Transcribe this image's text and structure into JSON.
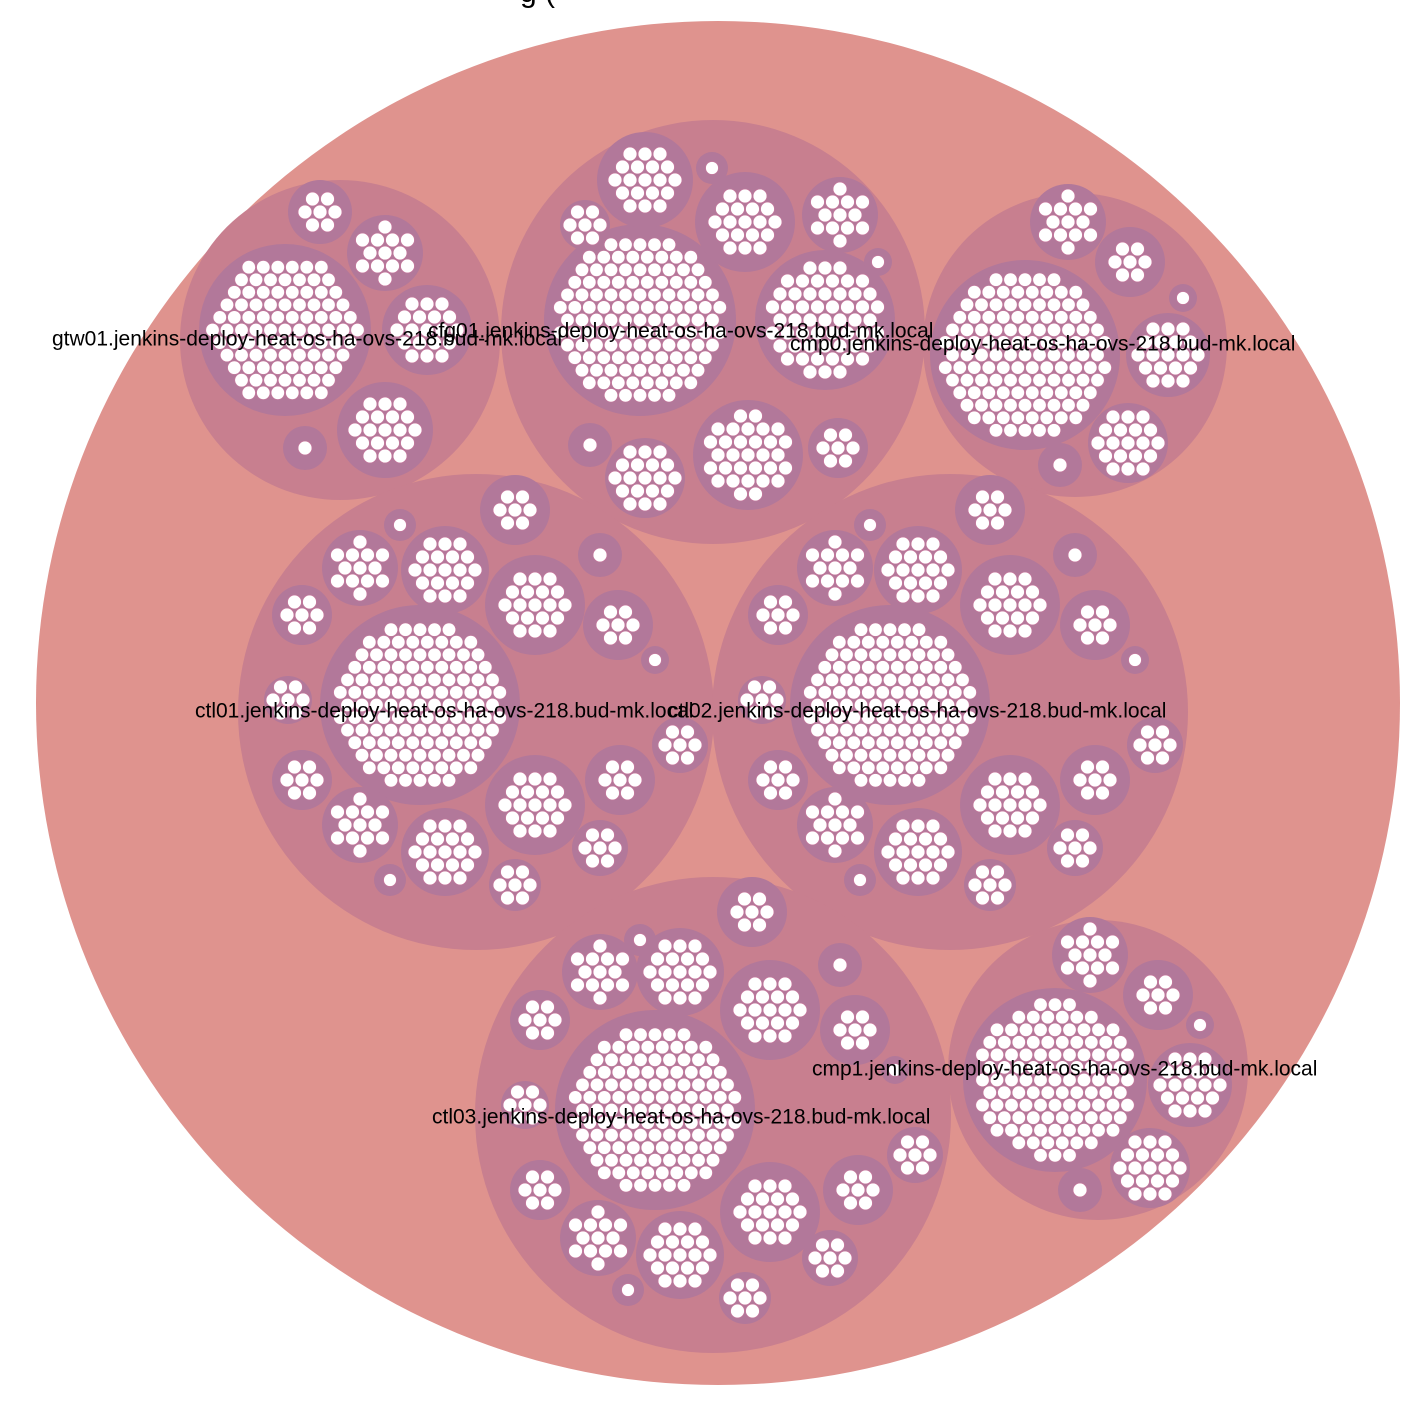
{
  "header": {
    "title_fragment": "g ("
  },
  "colors": {
    "root_fill": "#df938e",
    "host_fill": "#c87f8f",
    "group_fill": "#b2789a",
    "leaf_fill": "#ffffff",
    "leaf_stroke": "#c7779c",
    "label_color": "#000000"
  },
  "hosts": [
    {
      "id": "gtw01",
      "label": "gtw01.jenkins-deploy-heat-os-ha-ovs-218.bud-mk.local"
    },
    {
      "id": "cfg01",
      "label": "cfg01.jenkins-deploy-heat-os-ha-ovs-218.bud-mk.local"
    },
    {
      "id": "cmp0",
      "label": "cmp0.jenkins-deploy-heat-os-ha-ovs-218.bud-mk.local"
    },
    {
      "id": "ctl01",
      "label": "ctl01.jenkins-deploy-heat-os-ha-ovs-218.bud-mk.local"
    },
    {
      "id": "ctl02",
      "label": "ctl02.jenkins-deploy-heat-os-ha-ovs-218.bud-mk.local"
    },
    {
      "id": "ctl03",
      "label": "ctl03.jenkins-deploy-heat-os-ha-ovs-218.bud-mk.local"
    },
    {
      "id": "cmp1",
      "label": "cmp1.jenkins-deploy-heat-os-ha-ovs-218.bud-mk.local"
    }
  ]
}
